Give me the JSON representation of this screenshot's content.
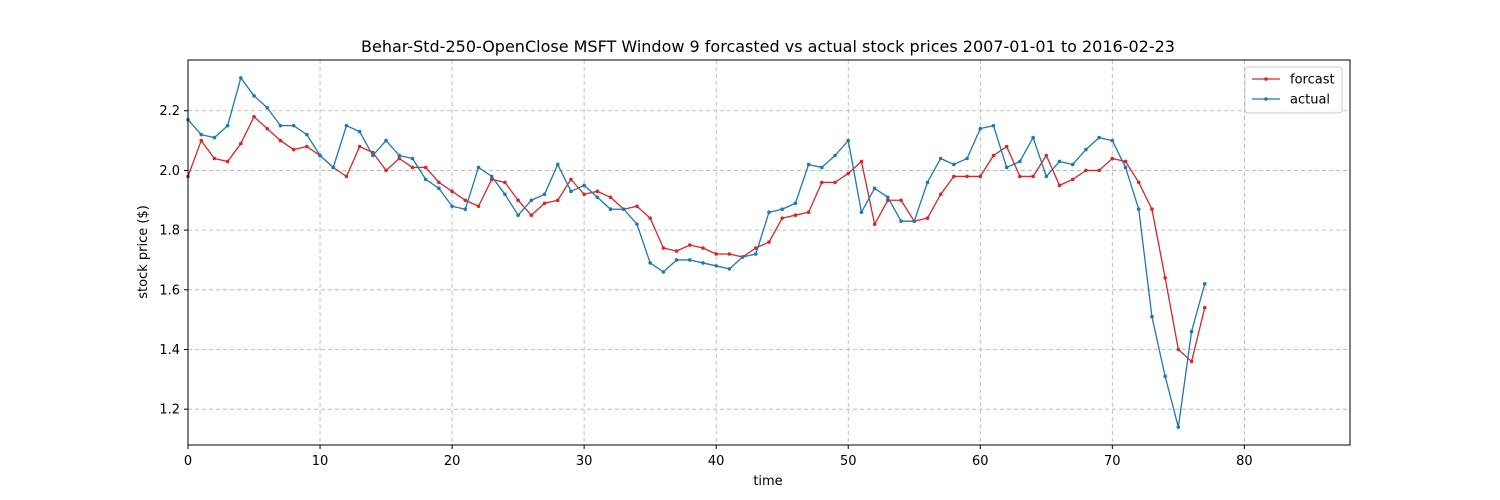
{
  "chart_data": {
    "type": "line",
    "title": "Behar-Std-250-OpenClose MSFT Window 9 forcasted vs actual stock prices 2007-01-01 to 2016-02-23",
    "xlabel": "time",
    "ylabel": "stock price ($)",
    "xlim": [
      0,
      88
    ],
    "ylim": [
      1.08,
      2.37
    ],
    "xticks": [
      0,
      10,
      20,
      30,
      40,
      50,
      60,
      70,
      80
    ],
    "yticks": [
      1.2,
      1.4,
      1.6,
      1.8,
      2.0,
      2.2
    ],
    "grid": true,
    "legend_position": "top-right",
    "series": [
      {
        "name": "forcast",
        "color": "#d62728",
        "values": [
          1.98,
          2.1,
          2.04,
          2.03,
          2.09,
          2.18,
          2.14,
          2.1,
          2.07,
          2.08,
          2.05,
          2.01,
          1.98,
          2.08,
          2.06,
          2.0,
          2.04,
          2.01,
          2.01,
          1.96,
          1.93,
          1.9,
          1.88,
          1.97,
          1.96,
          1.9,
          1.85,
          1.89,
          1.9,
          1.97,
          1.92,
          1.93,
          1.91,
          1.87,
          1.88,
          1.84,
          1.74,
          1.73,
          1.75,
          1.74,
          1.72,
          1.72,
          1.71,
          1.74,
          1.76,
          1.84,
          1.85,
          1.86,
          1.96,
          1.96,
          1.99,
          2.03,
          1.82,
          1.9,
          1.9,
          1.83,
          1.84,
          1.92,
          1.98,
          1.98,
          1.98,
          2.05,
          2.08,
          1.98,
          1.98,
          2.05,
          1.95,
          1.97,
          2.0,
          2.0,
          2.04,
          2.03,
          1.96,
          1.87,
          1.64,
          1.4,
          1.36,
          1.54
        ]
      },
      {
        "name": "actual",
        "color": "#1f77b4",
        "values": [
          2.17,
          2.12,
          2.11,
          2.15,
          2.31,
          2.25,
          2.21,
          2.15,
          2.15,
          2.12,
          2.05,
          2.01,
          2.15,
          2.13,
          2.05,
          2.1,
          2.05,
          2.04,
          1.97,
          1.94,
          1.88,
          1.87,
          2.01,
          1.98,
          1.92,
          1.85,
          1.9,
          1.92,
          2.02,
          1.93,
          1.95,
          1.91,
          1.87,
          1.87,
          1.82,
          1.69,
          1.66,
          1.7,
          1.7,
          1.69,
          1.68,
          1.67,
          1.71,
          1.72,
          1.86,
          1.87,
          1.89,
          2.02,
          2.01,
          2.05,
          2.1,
          1.86,
          1.94,
          1.91,
          1.83,
          1.83,
          1.96,
          2.04,
          2.02,
          2.04,
          2.14,
          2.15,
          2.01,
          2.03,
          2.11,
          1.98,
          2.03,
          2.02,
          2.07,
          2.11,
          2.1,
          2.01,
          1.87,
          1.51,
          1.31,
          1.14,
          1.46,
          1.62
        ]
      }
    ]
  }
}
